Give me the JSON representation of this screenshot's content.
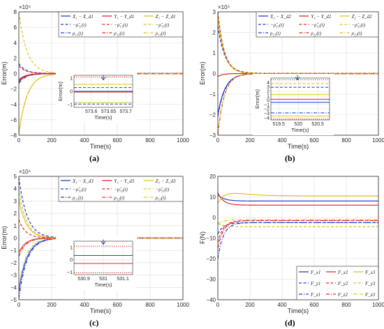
{
  "colors": {
    "blue": "#1f3fe0",
    "red": "#e8271e",
    "yellow": "#e2c21e",
    "grid": "#dcdcdc",
    "axis": "#262626"
  },
  "panels": [
    {
      "caption": "(a)",
      "chart_data": {
        "type": "line",
        "title": "",
        "xlabel": "Time(s)",
        "ylabel": "Error(m)",
        "exponent": "×10⁴",
        "xlim": [
          0,
          1000
        ],
        "ylim": [
          -8,
          8
        ],
        "xticks": [
          0,
          200,
          400,
          600,
          800,
          1000
        ],
        "yticks": [
          -8,
          -6,
          -4,
          -2,
          0,
          2,
          4,
          6,
          8
        ],
        "legend": [
          "X₁ − X_d1",
          "Y₁ − Y_d1",
          "Z₁ − Z_d1",
          "−ρ̂₁₁(t)",
          "−ρ̂₁₂(t)",
          "−ρ̂₁₃(t)",
          "ρ₁₁(t)",
          "ρ₁₂(t)",
          "ρ₁₃(t)"
        ],
        "legend_location": "top-right",
        "series": [
          {
            "name": "X₁ − X_d1",
            "color": "blue",
            "dash": "solid",
            "start": -1.0,
            "end": 0,
            "tau": 40
          },
          {
            "name": "Y₁ − Y_d1",
            "color": "red",
            "dash": "solid",
            "start": -0.8,
            "end": 0,
            "tau": 40
          },
          {
            "name": "Z₁ − Z_d1",
            "color": "yellow",
            "dash": "solid",
            "start": -7.8,
            "end": 0,
            "tau": 50
          },
          {
            "name": "−ρ̂₁₁(t)",
            "color": "blue",
            "dash": "dashed",
            "start": 1.3,
            "end": 0.02,
            "tau": 40
          },
          {
            "name": "−ρ̂₁₂(t)",
            "color": "red",
            "dash": "dashed",
            "start": 1.0,
            "end": 0.015,
            "tau": 40
          },
          {
            "name": "−ρ̂₁₃(t)",
            "color": "yellow",
            "dash": "dashed",
            "start": 7.9,
            "end": 0.01,
            "tau": 50
          },
          {
            "name": "ρ₁₁(t)",
            "color": "blue",
            "dash": "dashdot",
            "start": -1.3,
            "end": -0.02,
            "tau": 40
          },
          {
            "name": "ρ₁₂(t)",
            "color": "red",
            "dash": "dashdot",
            "start": -1.1,
            "end": -0.015,
            "tau": 40
          },
          {
            "name": "ρ₁₃(t)",
            "color": "yellow",
            "dash": "dashdot",
            "start": -7.9,
            "end": -0.01,
            "tau": 50
          }
        ],
        "inset": {
          "xlim": [
            573.55,
            573.72
          ],
          "ylim": [
            -1.2,
            1.2
          ],
          "xticks": [
            573.6,
            573.65,
            573.7
          ],
          "yticks": [
            -1,
            0,
            1
          ],
          "xlabel": "Time(s)",
          "ylabel": "Error(m)",
          "lines": [
            {
              "color": "red",
              "dash": "dotted",
              "value": 1.08
            },
            {
              "color": "yellow",
              "dash": "solid",
              "value": 0.52
            },
            {
              "color": "blue",
              "dash": "dashed",
              "value": 0.28
            },
            {
              "color": "blue",
              "dash": "solid",
              "value": 0.0
            },
            {
              "color": "red",
              "dash": "solid",
              "value": -0.05
            },
            {
              "color": "yellow",
              "dash": "solid",
              "value": -0.85
            },
            {
              "color": "blue",
              "dash": "dashed",
              "value": -0.95
            }
          ]
        }
      }
    },
    {
      "caption": "(b)",
      "chart_data": {
        "type": "line",
        "title": "",
        "xlabel": "Time(s)",
        "ylabel": "Error(m)",
        "exponent": "×10⁴",
        "xlim": [
          0,
          1000
        ],
        "ylim": [
          -3,
          3
        ],
        "xticks": [
          0,
          200,
          400,
          600,
          800,
          1000
        ],
        "yticks": [
          -3,
          -2,
          -1,
          0,
          1,
          2,
          3
        ],
        "legend": [
          "X₂ − X_d2",
          "Y₂ − Y_d2",
          "Z₂ − Z_d2",
          "−ρ̂₂₁(t)",
          "−ρ̂₂₂(t)",
          "−ρ̂₂₃(t)",
          "ρ₂₁(t)",
          "ρ₂₂(t)",
          "ρ₂₃(t)"
        ],
        "legend_location": "top-right",
        "series": [
          {
            "name": "X₂ − X_d2",
            "color": "blue",
            "dash": "solid",
            "start": -2.0,
            "end": 0,
            "tau": 45
          },
          {
            "name": "Y₂ − Y_d2",
            "color": "red",
            "dash": "solid",
            "start": -0.15,
            "end": 0,
            "tau": 30
          },
          {
            "name": "Z₂ − Z_d2",
            "color": "yellow",
            "dash": "solid",
            "start": 2.7,
            "end": 0,
            "tau": 40
          },
          {
            "name": "−ρ̂₂₁(t)",
            "color": "blue",
            "dash": "dashed",
            "start": 2.3,
            "end": 0.01,
            "tau": 45
          },
          {
            "name": "−ρ̂₂₂(t)",
            "color": "red",
            "dash": "dashed",
            "start": 3.0,
            "end": 0.01,
            "tau": 40
          },
          {
            "name": "−ρ̂₂₃(t)",
            "color": "yellow",
            "dash": "dashed",
            "start": 2.9,
            "end": 0.01,
            "tau": 40
          },
          {
            "name": "ρ₂₁(t)",
            "color": "blue",
            "dash": "dashdot",
            "start": -2.1,
            "end": -0.01,
            "tau": 45
          },
          {
            "name": "ρ₂₂(t)",
            "color": "red",
            "dash": "dashdot",
            "start": -3.0,
            "end": -0.01,
            "tau": 40
          },
          {
            "name": "ρ₂₃(t)",
            "color": "yellow",
            "dash": "dashdot",
            "start": -2.9,
            "end": -0.01,
            "tau": 40
          }
        ],
        "inset": {
          "xlim": [
            519.3,
            520.8
          ],
          "ylim": [
            -4.5,
            5
          ],
          "xticks": [
            519.5,
            520,
            520.5
          ],
          "yticks": [
            -4,
            -3,
            -2,
            -1,
            0,
            1,
            2,
            3,
            4
          ],
          "xlabel": "Time(s)",
          "ylabel": "Error(m)",
          "lines": [
            {
              "color": "red",
              "dash": "dotted",
              "value": 4.6
            },
            {
              "color": "yellow",
              "dash": "dashed",
              "value": 3.7
            },
            {
              "color": "blue",
              "dash": "dashed",
              "value": 2.9
            },
            {
              "color": "yellow",
              "dash": "solid",
              "value": 1.3
            },
            {
              "color": "red",
              "dash": "solid",
              "value": 0.2
            },
            {
              "color": "blue",
              "dash": "solid",
              "value": -0.5
            },
            {
              "color": "blue",
              "dash": "dashdot",
              "value": -2.9
            },
            {
              "color": "yellow",
              "dash": "solid",
              "value": -3.6
            },
            {
              "color": "red",
              "dash": "dotted",
              "value": -4.3
            }
          ]
        }
      }
    },
    {
      "caption": "(c)",
      "chart_data": {
        "type": "line",
        "title": "",
        "xlabel": "Time(s)",
        "ylabel": "Error(m)",
        "exponent": "×10⁴",
        "xlim": [
          0,
          1000
        ],
        "ylim": [
          -5,
          5
        ],
        "xticks": [
          0,
          200,
          400,
          600,
          800,
          1000
        ],
        "yticks": [
          -5,
          -4,
          -3,
          -2,
          -1,
          0,
          1,
          2,
          3,
          4,
          5
        ],
        "legend": [
          "X₃ − X_d3",
          "Y₃ − Y_d3",
          "Z₃ − Z_d3",
          "−ρ̂₃₁(t)",
          "−ρ̂₃₂(t)",
          "−ρ̂₃₃(t)",
          "ρ₃₁(t)",
          "ρ₃₂(t)",
          "ρ₃₃(t)"
        ],
        "legend_location": "top-right",
        "series": [
          {
            "name": "X₃ − X_d3",
            "color": "blue",
            "dash": "solid",
            "start": -4.3,
            "end": 0,
            "tau": 50
          },
          {
            "name": "Y₃ − Y_d3",
            "color": "red",
            "dash": "solid",
            "start": -1.2,
            "end": 0,
            "tau": 40
          },
          {
            "name": "Z₃ − Z_d3",
            "color": "yellow",
            "dash": "solid",
            "start": 3.2,
            "end": 0,
            "tau": 45
          },
          {
            "name": "−ρ̂₃₁(t)",
            "color": "blue",
            "dash": "dashed",
            "start": 4.9,
            "end": 0.01,
            "tau": 50
          },
          {
            "name": "−ρ̂₃₂(t)",
            "color": "red",
            "dash": "dashed",
            "start": 1.5,
            "end": 0.01,
            "tau": 40
          },
          {
            "name": "−ρ̂₃₃(t)",
            "color": "yellow",
            "dash": "dashed",
            "start": 4.0,
            "end": 0.01,
            "tau": 45
          },
          {
            "name": "ρ₃₁(t)",
            "color": "blue",
            "dash": "dashdot",
            "start": -4.9,
            "end": -0.01,
            "tau": 50
          },
          {
            "name": "ρ₃₂(t)",
            "color": "red",
            "dash": "dashdot",
            "start": -1.5,
            "end": -0.01,
            "tau": 40
          },
          {
            "name": "ρ₃₃(t)",
            "color": "yellow",
            "dash": "dashdot",
            "start": -4.0,
            "end": -0.01,
            "tau": 45
          }
        ],
        "inset": {
          "xlim": [
            530.85,
            531.15
          ],
          "ylim": [
            -1.2,
            1.5
          ],
          "xticks": [
            530.9,
            531,
            531.1
          ],
          "yticks": [
            -1,
            0,
            1
          ],
          "xlabel": "Time(s)",
          "ylabel": "",
          "lines": [
            {
              "color": "red",
              "dash": "dotted",
              "value": 1.1
            },
            {
              "color": "blue",
              "dash": "solid",
              "value": 0.35
            },
            {
              "color": "red",
              "dash": "solid",
              "value": -0.3
            },
            {
              "color": "red",
              "dash": "dotted",
              "value": -1.05
            }
          ]
        }
      }
    },
    {
      "caption": "(d)",
      "chart_data": {
        "type": "line",
        "title": "",
        "xlabel": "Time(s)",
        "ylabel": "F(N)",
        "exponent": "",
        "xlim": [
          0,
          1000
        ],
        "ylim": [
          -40,
          20
        ],
        "xticks": [
          0,
          200,
          400,
          600,
          800,
          1000
        ],
        "yticks": [
          -40,
          -30,
          -20,
          -10,
          0,
          10,
          20
        ],
        "legend": [
          "F_x1",
          "F_x2",
          "F_x3",
          "F_y1",
          "F_y2",
          "F_y3",
          "F_z1",
          "F_z2",
          "F_z3"
        ],
        "legend_location": "bottom-right",
        "series": [
          {
            "name": "F_x1",
            "color": "blue",
            "dash": "solid",
            "start": 11,
            "end": 8,
            "tau": 40
          },
          {
            "name": "F_x2",
            "color": "red",
            "dash": "solid",
            "start": 12,
            "end": 6,
            "tau": 35
          },
          {
            "name": "F_x3",
            "color": "yellow",
            "dash": "solid",
            "start": 7,
            "end": 10.5,
            "tau": 30,
            "peak": 12,
            "peakAt": 80
          },
          {
            "name": "F_y1",
            "color": "blue",
            "dash": "dashed",
            "start": -8,
            "end": -2.5,
            "tau": 35
          },
          {
            "name": "F_y2",
            "color": "red",
            "dash": "dashed",
            "start": -12,
            "end": -1.5,
            "tau": 35
          },
          {
            "name": "F_y3",
            "color": "yellow",
            "dash": "dashed",
            "start": -3,
            "end": -4.5,
            "tau": 40
          },
          {
            "name": "F_z1",
            "color": "blue",
            "dash": "dashdot",
            "start": -20,
            "end": -2.5,
            "tau": 35
          },
          {
            "name": "F_z2",
            "color": "red",
            "dash": "dashdot",
            "start": -15,
            "end": -1.5,
            "tau": 35
          },
          {
            "name": "F_z3",
            "color": "yellow",
            "dash": "dashdot",
            "start": -3,
            "end": -1,
            "tau": 40
          }
        ],
        "inset": null
      }
    }
  ]
}
